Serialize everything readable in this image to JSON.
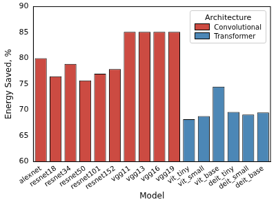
{
  "chart_data": {
    "type": "bar",
    "categories": [
      "alexnet",
      "resnet18",
      "resnet34",
      "resnet50",
      "resnet101",
      "resnet152",
      "vgg11",
      "vgg13",
      "vgg16",
      "vgg19",
      "vit_tiny",
      "vit_small",
      "vit_base",
      "deit_tiny",
      "deit_small",
      "deit_base"
    ],
    "series": [
      {
        "name": "Convolutional",
        "color": "#cc4b42",
        "values": [
          80.0,
          76.5,
          78.9,
          75.7,
          77.0,
          77.9,
          85.1,
          85.1,
          85.1,
          85.1,
          null,
          null,
          null,
          null,
          null,
          null
        ]
      },
      {
        "name": "Transformer",
        "color": "#4c87b6",
        "values": [
          null,
          null,
          null,
          null,
          null,
          null,
          null,
          null,
          null,
          null,
          68.2,
          68.8,
          74.5,
          69.6,
          69.1,
          69.5
        ]
      }
    ],
    "x_label": "Model",
    "y_label": "Energy Saved, %",
    "ylim": [
      60,
      90
    ],
    "yticks": [
      60,
      65,
      70,
      75,
      80,
      85,
      90
    ],
    "grid": false,
    "legend": "upper right",
    "legend_title": "Architecture"
  }
}
